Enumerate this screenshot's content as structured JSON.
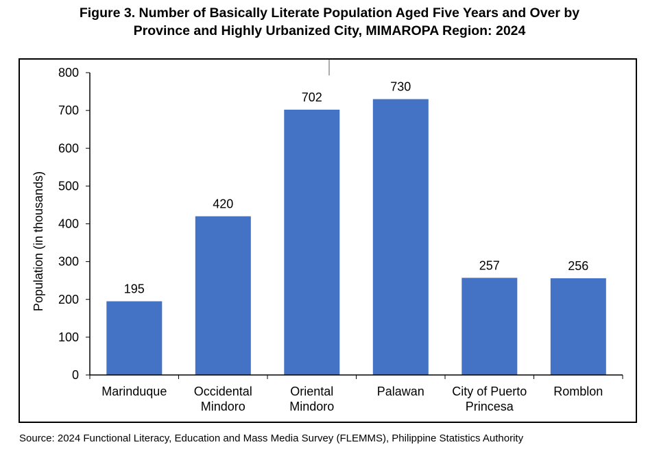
{
  "title": {
    "line1": "Figure 3. Number of Basically Literate Population Aged Five Years and Over by",
    "line2": "Province and Highly Urbanized City, MIMAROPA Region: 2024"
  },
  "source": "Source: 2024 Functional Literacy, Education and Mass Media Survey (FLEMMS), Philippine Statistics Authority",
  "chart_data": {
    "type": "bar",
    "categories": [
      [
        "Marinduque"
      ],
      [
        "Occidental",
        "Mindoro"
      ],
      [
        "Oriental",
        "Mindoro"
      ],
      [
        "Palawan"
      ],
      [
        "City of Puerto",
        "Princesa"
      ],
      [
        "Romblon"
      ]
    ],
    "values": [
      195,
      420,
      702,
      730,
      257,
      256
    ],
    "data_labels": [
      "195",
      "420",
      "702",
      "730",
      "257",
      "256"
    ],
    "ylabel": "Population (in thousands)",
    "xlabel": "",
    "ylim": [
      0,
      800
    ],
    "yticks": [
      0,
      100,
      200,
      300,
      400,
      500,
      600,
      700,
      800
    ],
    "grid": false,
    "legend": "none",
    "bar_color": "#4472C4"
  }
}
